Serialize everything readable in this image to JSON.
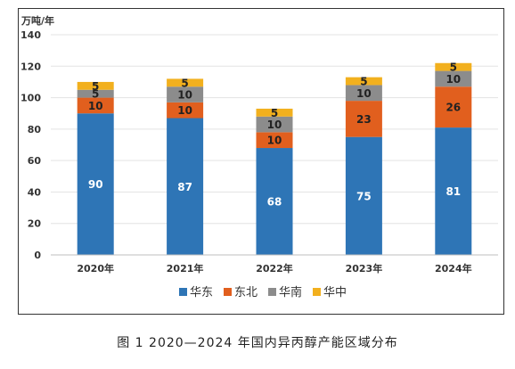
{
  "chart_data": {
    "type": "bar",
    "stacked": true,
    "unit_label": "万吨/年",
    "categories": [
      "2020年",
      "2021年",
      "2022年",
      "2023年",
      "2024年"
    ],
    "series": [
      {
        "name": "华东",
        "values": [
          90,
          87,
          68,
          75,
          81
        ],
        "color": "#2E75B6",
        "label_color": "#FFFFFF"
      },
      {
        "name": "东北",
        "values": [
          10,
          10,
          10,
          23,
          26
        ],
        "color": "#E15F1E",
        "label_color": "#222222"
      },
      {
        "name": "华南",
        "values": [
          5,
          10,
          10,
          10,
          10
        ],
        "color": "#8C8C8C",
        "label_color": "#222222"
      },
      {
        "name": "华中",
        "values": [
          5,
          5,
          5,
          5,
          5
        ],
        "color": "#F2B01E",
        "label_color": "#222222"
      }
    ],
    "ylim": [
      0,
      140
    ],
    "yticks": [
      0,
      20,
      40,
      60,
      80,
      100,
      120,
      140
    ],
    "grid": true,
    "legend_position": "bottom"
  },
  "caption": "图 1  2020—2024 年国内异丙醇产能区域分布"
}
